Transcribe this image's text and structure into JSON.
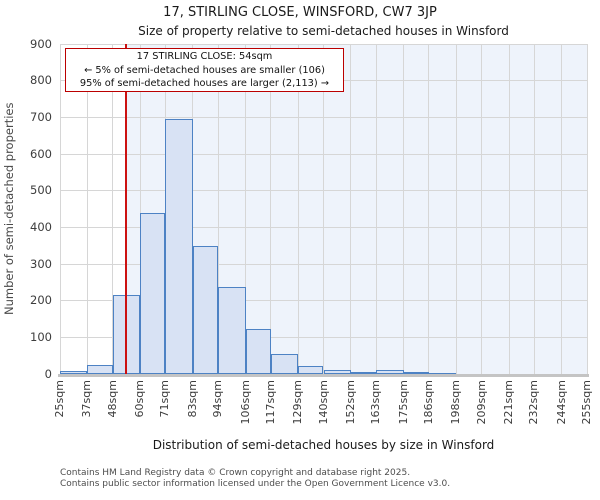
{
  "header": {
    "title": "17, STIRLING CLOSE, WINSFORD, CW7 3JP",
    "subtitle": "Size of property relative to semi-detached houses in Winsford"
  },
  "annotation": {
    "line1": "17 STIRLING CLOSE: 54sqm",
    "line2": "← 5% of semi-detached houses are smaller (106)",
    "line3": "95% of semi-detached houses are larger (2,113) →"
  },
  "chart_data": {
    "type": "bar",
    "title": "17, STIRLING CLOSE, WINSFORD, CW7 3JP",
    "subtitle": "Size of property relative to semi-detached houses in Winsford",
    "xlabel": "Distribution of semi-detached houses by size in Winsford",
    "ylabel": "Number of semi-detached properties",
    "bin_edges_sqm": [
      25,
      37,
      48,
      60,
      71,
      83,
      94,
      106,
      117,
      129,
      140,
      152,
      163,
      175,
      186,
      198,
      209,
      221,
      232,
      244,
      255
    ],
    "x_tick_labels": [
      "25sqm",
      "37sqm",
      "48sqm",
      "60sqm",
      "71sqm",
      "83sqm",
      "94sqm",
      "106sqm",
      "117sqm",
      "129sqm",
      "140sqm",
      "152sqm",
      "163sqm",
      "175sqm",
      "186sqm",
      "198sqm",
      "209sqm",
      "221sqm",
      "232sqm",
      "244sqm",
      "255sqm"
    ],
    "values": [
      8,
      25,
      215,
      440,
      695,
      350,
      237,
      122,
      55,
      22,
      11,
      6,
      10,
      6,
      3,
      0,
      0,
      0,
      0,
      0
    ],
    "y_ticks": [
      0,
      100,
      200,
      300,
      400,
      500,
      600,
      700,
      800,
      900
    ],
    "ylim": [
      0,
      900
    ],
    "grid": true,
    "legend": "none",
    "marker": {
      "label": "17 STIRLING CLOSE",
      "size_sqm": 54,
      "pct_smaller": 5,
      "count_smaller": 106,
      "pct_larger": 95,
      "count_larger": 2113
    },
    "colors": {
      "bar_fill": "#d8e2f4",
      "bar_border": "#4d82c4",
      "marker_line": "#cc1111",
      "annotation_border": "#bb0000",
      "shade": "#eef3fb",
      "grid": "#d6d6d6"
    }
  },
  "footer": {
    "line1": "Contains HM Land Registry data © Crown copyright and database right 2025.",
    "line2": "Contains public sector information licensed under the Open Government Licence v3.0."
  }
}
